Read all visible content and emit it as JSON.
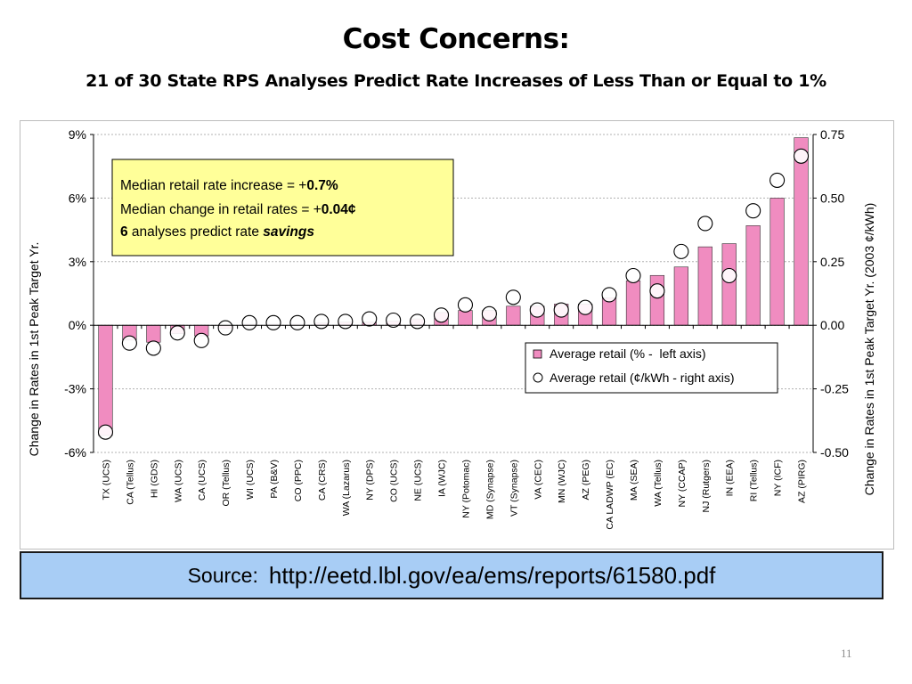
{
  "slide": {
    "title": "Cost Concerns:",
    "subtitle": "21 of 30 State RPS Analyses Predict Rate Increases of Less Than or Equal to 1%",
    "source_label": "Source:",
    "source_link": "http://eetd.lbl.gov/ea/ems/reports/61580.pdf",
    "page_number": "11"
  },
  "colors": {
    "bar_fill": "#f08cc0",
    "callout_fill": "#ffff99",
    "source_fill": "#a8cdf5"
  },
  "chart_data": {
    "type": "bar",
    "ylabel": "Change in  Rates in 1st Peak Target Yr.",
    "y2label": "Change in Rates in 1st Peak Target Yr. (2003 ¢/kWh)",
    "ylim": [
      -6,
      9
    ],
    "y_ticks": [
      "9%",
      "6%",
      "3%",
      "0%",
      "-3%",
      "-6%"
    ],
    "y_tick_values": [
      9,
      6,
      3,
      0,
      -3,
      -6
    ],
    "y2lim": [
      -0.5,
      0.75
    ],
    "y2_ticks": [
      "0.75",
      "0.50",
      "0.25",
      "0.00",
      "-0.25",
      "-0.50"
    ],
    "y2_tick_values": [
      0.75,
      0.5,
      0.25,
      0,
      -0.25,
      -0.5
    ],
    "grid": true,
    "categories": [
      "TX (UCS)",
      "CA (Tellus)",
      "HI (GDS)",
      "WA (UCS)",
      "CA (UCS)",
      "OR (Tellus)",
      "WI (UCS)",
      "PA (B&V)",
      "CO (PPC)",
      "CA (CRS)",
      "WA (Lazarus)",
      "NY (DPS)",
      "CO (UCS)",
      "NE (UCS)",
      "IA (WJC)",
      "NY (Potomac)",
      "MD (Synapse)",
      "VT (Synapse)",
      "VA (CEC)",
      "MN (WJC)",
      "AZ (PEG)",
      "CA LADWP (EC)",
      "MA (SEA)",
      "WA (Tellus)",
      "NY (CCAP)",
      "NJ (Rutgers)",
      "IN (EEA)",
      "RI (Tellus)",
      "NY (ICF)",
      "AZ (PIRG)"
    ],
    "series": [
      {
        "name": "Average retail (% -  left axis)",
        "axis": "left",
        "mark": "bar",
        "values": [
          -5.2,
          -0.7,
          -0.8,
          -0.4,
          -0.5,
          -0.15,
          0.05,
          0.05,
          0.05,
          0.1,
          0.15,
          0.15,
          0.2,
          0.3,
          0.6,
          0.7,
          0.7,
          0.9,
          0.9,
          1.0,
          1.0,
          1.3,
          2.1,
          2.35,
          2.75,
          3.7,
          3.85,
          4.7,
          6.0,
          8.85
        ]
      },
      {
        "name": "Average retail (¢/kWh - right axis)",
        "axis": "right",
        "mark": "circle",
        "values": [
          -0.42,
          -0.07,
          -0.09,
          -0.03,
          -0.06,
          -0.01,
          0.01,
          0.01,
          0.01,
          0.015,
          0.015,
          0.025,
          0.02,
          0.015,
          0.04,
          0.08,
          0.045,
          0.11,
          0.06,
          0.06,
          0.07,
          0.12,
          0.195,
          0.135,
          0.29,
          0.4,
          0.195,
          0.45,
          0.57,
          0.665
        ]
      }
    ],
    "legend_position": "bottom-right",
    "annotation": {
      "line1_a": "Median retail rate increase = +",
      "line1_b": "0.7%",
      "line2_a": "Median change in retail rates = +",
      "line2_b": "0.04¢",
      "line3_a": "6",
      "line3_b": " analyses predict rate ",
      "line3_c": "savings"
    }
  }
}
